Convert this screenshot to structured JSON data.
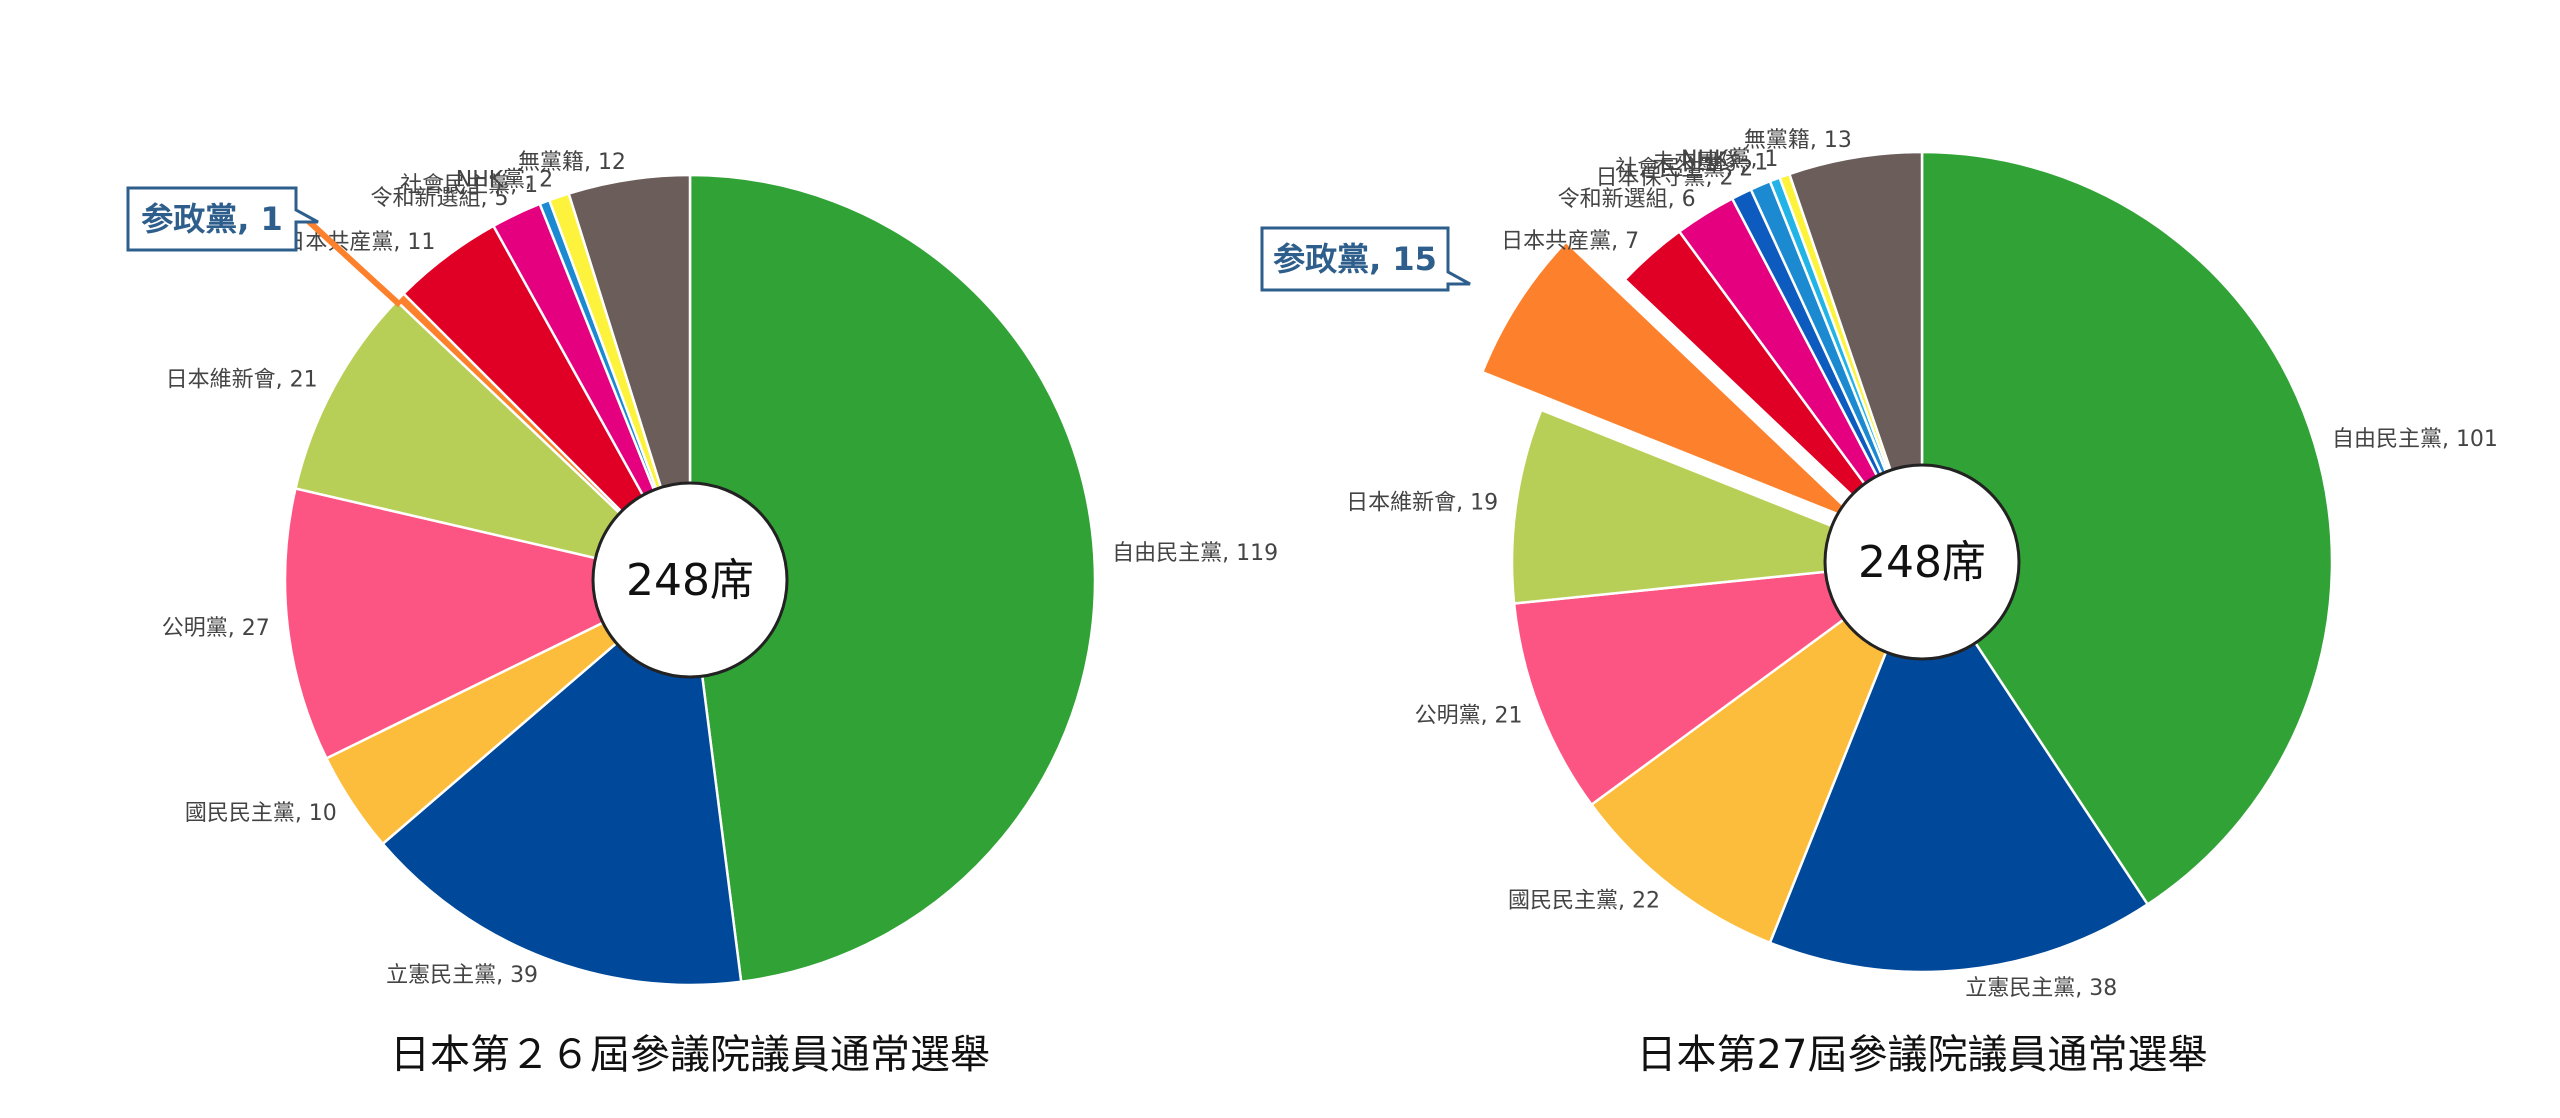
{
  "chart_data": [
    {
      "type": "pie",
      "title": "日本第２６屆參議院議員通常選舉",
      "center_label": "248席",
      "callout": "参政黨, 1",
      "slices": [
        {
          "label": "自由民主黨, 119",
          "name": "自由民主黨",
          "value": 119,
          "color": "#31a336"
        },
        {
          "label": "立憲民主黨, 39",
          "name": "立憲民主黨",
          "value": 39,
          "color": "#004899"
        },
        {
          "label": "國民民主黨, 10",
          "name": "國民民主黨",
          "value": 10,
          "color": "#fdbd3c"
        },
        {
          "label": "公明黨, 27",
          "name": "公明黨",
          "value": 27,
          "color": "#fd5583"
        },
        {
          "label": "日本維新會, 21",
          "name": "日本維新會",
          "value": 21,
          "color": "#b8cf57"
        },
        {
          "label": "",
          "name": "参政黨",
          "value": 1,
          "color": "#fd812c"
        },
        {
          "label": "日本共産黨, 11",
          "name": "日本共産黨",
          "value": 11,
          "color": "#e00025"
        },
        {
          "label": "令和新選組, 5",
          "name": "令和新選組",
          "value": 5,
          "color": "#e4007f"
        },
        {
          "label": "社會民主黨, 1",
          "name": "社會民主黨",
          "value": 1,
          "color": "#1c8ad0"
        },
        {
          "label": "NHK黨, 2",
          "name": "NHK黨",
          "value": 2,
          "color": "#fdf33c"
        },
        {
          "label": "無黨籍, 12",
          "name": "無黨籍",
          "value": 12,
          "color": "#6b5d5a"
        }
      ]
    },
    {
      "type": "pie",
      "title": "日本第27屆參議院議員通常選舉",
      "center_label": "248席",
      "callout": "参政黨, 15",
      "slices": [
        {
          "label": "自由民主黨, 101",
          "name": "自由民主黨",
          "value": 101,
          "color": "#31a336"
        },
        {
          "label": "立憲民主黨, 38",
          "name": "立憲民主黨",
          "value": 38,
          "color": "#004899"
        },
        {
          "label": "國民民主黨, 22",
          "name": "國民民主黨",
          "value": 22,
          "color": "#fdbd3c"
        },
        {
          "label": "公明黨, 21",
          "name": "公明黨",
          "value": 21,
          "color": "#fd5583"
        },
        {
          "label": "日本維新會, 19",
          "name": "日本維新會",
          "value": 19,
          "color": "#b8cf57"
        },
        {
          "label": "",
          "name": "参政黨",
          "value": 15,
          "color": "#fd812c"
        },
        {
          "label": "日本共産黨, 7",
          "name": "日本共産黨",
          "value": 7,
          "color": "#e00025"
        },
        {
          "label": "令和新選組, 6",
          "name": "令和新選組",
          "value": 6,
          "color": "#e4007f"
        },
        {
          "label": "日本保守黨, 2",
          "name": "日本保守黨",
          "value": 2,
          "color": "#0d5bbf"
        },
        {
          "label": "社會民主黨, 2",
          "name": "社會民主黨",
          "value": 2,
          "color": "#1c8ad0"
        },
        {
          "label": "未來團隊, 1",
          "name": "未來團隊",
          "value": 1,
          "color": "#22b4e6"
        },
        {
          "label": "NHK黨, 1",
          "name": "NHK黨",
          "value": 1,
          "color": "#fdf33c"
        },
        {
          "label": "無黨籍, 13",
          "name": "無黨籍",
          "value": 13,
          "color": "#6b5d5a"
        }
      ]
    }
  ]
}
